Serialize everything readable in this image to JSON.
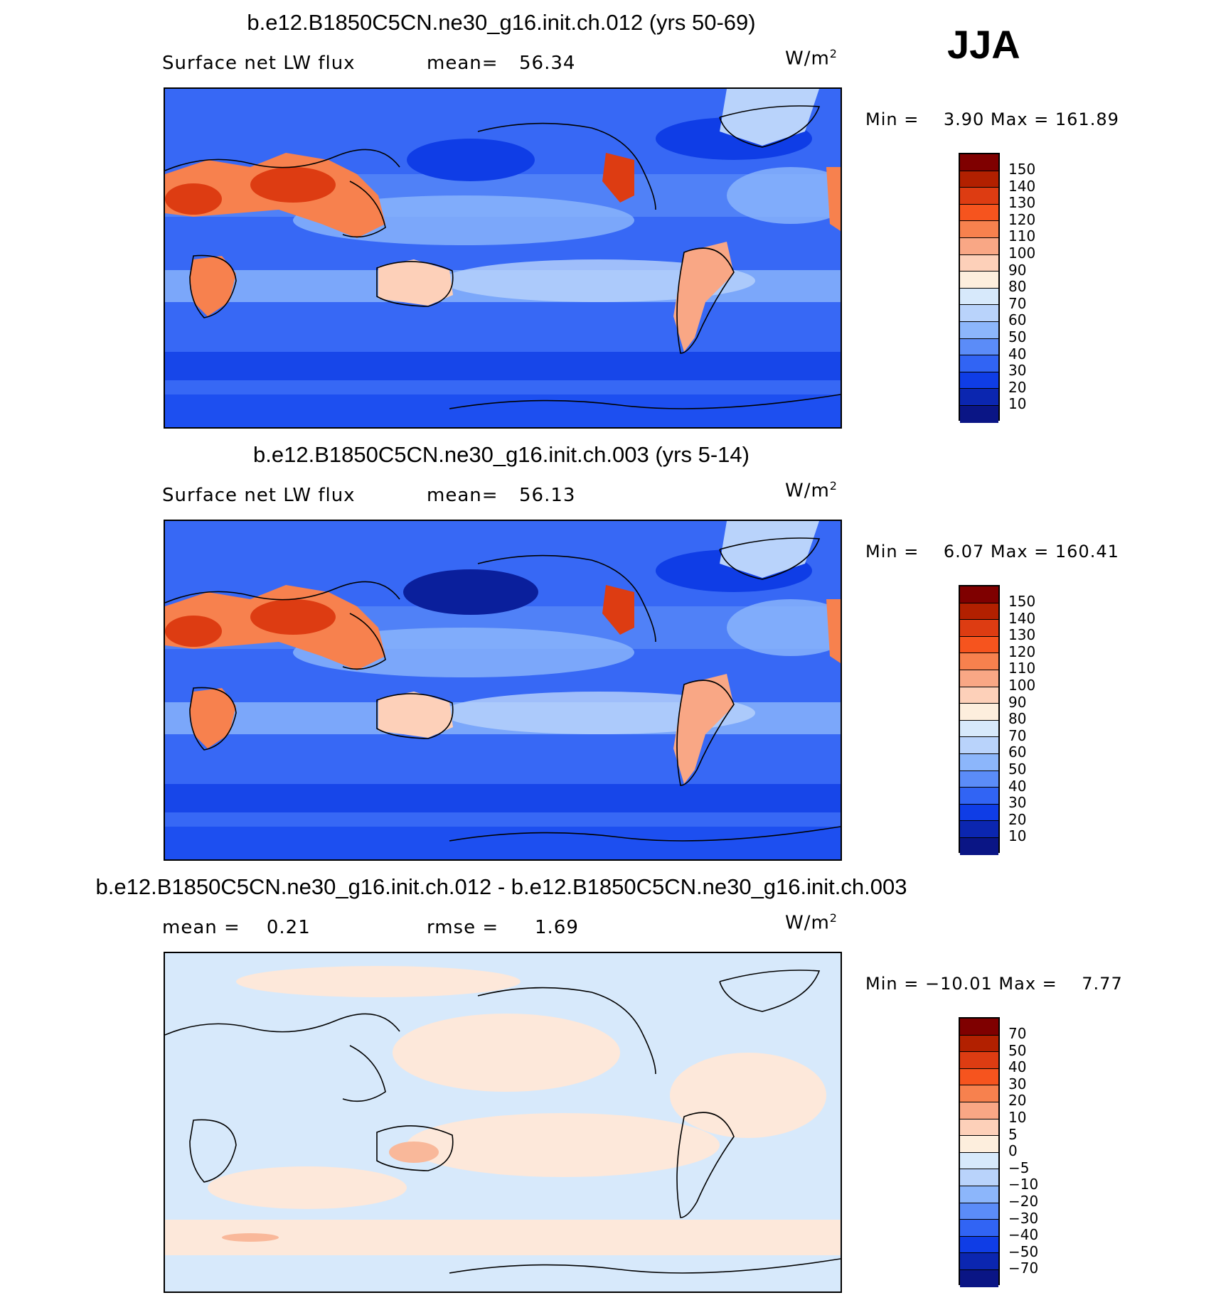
{
  "season": "JJA",
  "units_base": "W/m",
  "units_exp": "2",
  "panels": [
    {
      "title": "b.e12.B1850C5CN.ne30_g16.init.ch.012 (yrs 50-69)",
      "left_label": "Surface net LW flux",
      "stat_label": "mean=",
      "stat_value": "56.34",
      "minmax": "Min =    3.90 Max = 161.89",
      "colorbar_labels": [
        "150",
        "140",
        "130",
        "120",
        "110",
        "100",
        "90",
        "80",
        "70",
        "60",
        "50",
        "40",
        "30",
        "20",
        "10"
      ]
    },
    {
      "title": "b.e12.B1850C5CN.ne30_g16.init.ch.003 (yrs 5-14)",
      "left_label": "Surface net LW flux",
      "stat_label": "mean=",
      "stat_value": "56.13",
      "minmax": "Min =    6.07 Max = 160.41",
      "colorbar_labels": [
        "150",
        "140",
        "130",
        "120",
        "110",
        "100",
        "90",
        "80",
        "70",
        "60",
        "50",
        "40",
        "30",
        "20",
        "10"
      ]
    },
    {
      "title": "b.e12.B1850C5CN.ne30_g16.init.ch.012 - b.e12.B1850C5CN.ne30_g16.init.ch.003",
      "left_label": "mean =    0.21",
      "stat_label": "rmse =",
      "stat_value": "1.69",
      "minmax": "Min = −10.01 Max =    7.77",
      "colorbar_labels": [
        "70",
        "50",
        "40",
        "30",
        "20",
        "10",
        "5",
        "0",
        "−5",
        "−10",
        "−20",
        "−30",
        "−40",
        "−50",
        "−70"
      ]
    }
  ],
  "colorbar_colors": [
    "#7f0000",
    "#b22000",
    "#dd3c12",
    "#f6541e",
    "#f7814e",
    "#f9a785",
    "#fdd0b9",
    "#fdeedd",
    "#d7e9fb",
    "#b9d3fb",
    "#8cb6fb",
    "#5b8cf8",
    "#3164f4",
    "#0f3de6",
    "#0b26b0",
    "#0a1585"
  ],
  "map_colors": {
    "ocean": "#3768f5",
    "ocean_light": "#8cb6fb",
    "ocean_pale": "#b9d3fb",
    "ocean_dark": "#0f3de6",
    "ocean_darkest": "#0a1f9c",
    "land_hot": "#dd3c12",
    "land_warm": "#f7814e",
    "land_mild": "#fdd0b9",
    "diff_neg": "#d7e9fb",
    "diff_pos": "#fde8da",
    "diff_mid_pos": "#f9b89a"
  }
}
